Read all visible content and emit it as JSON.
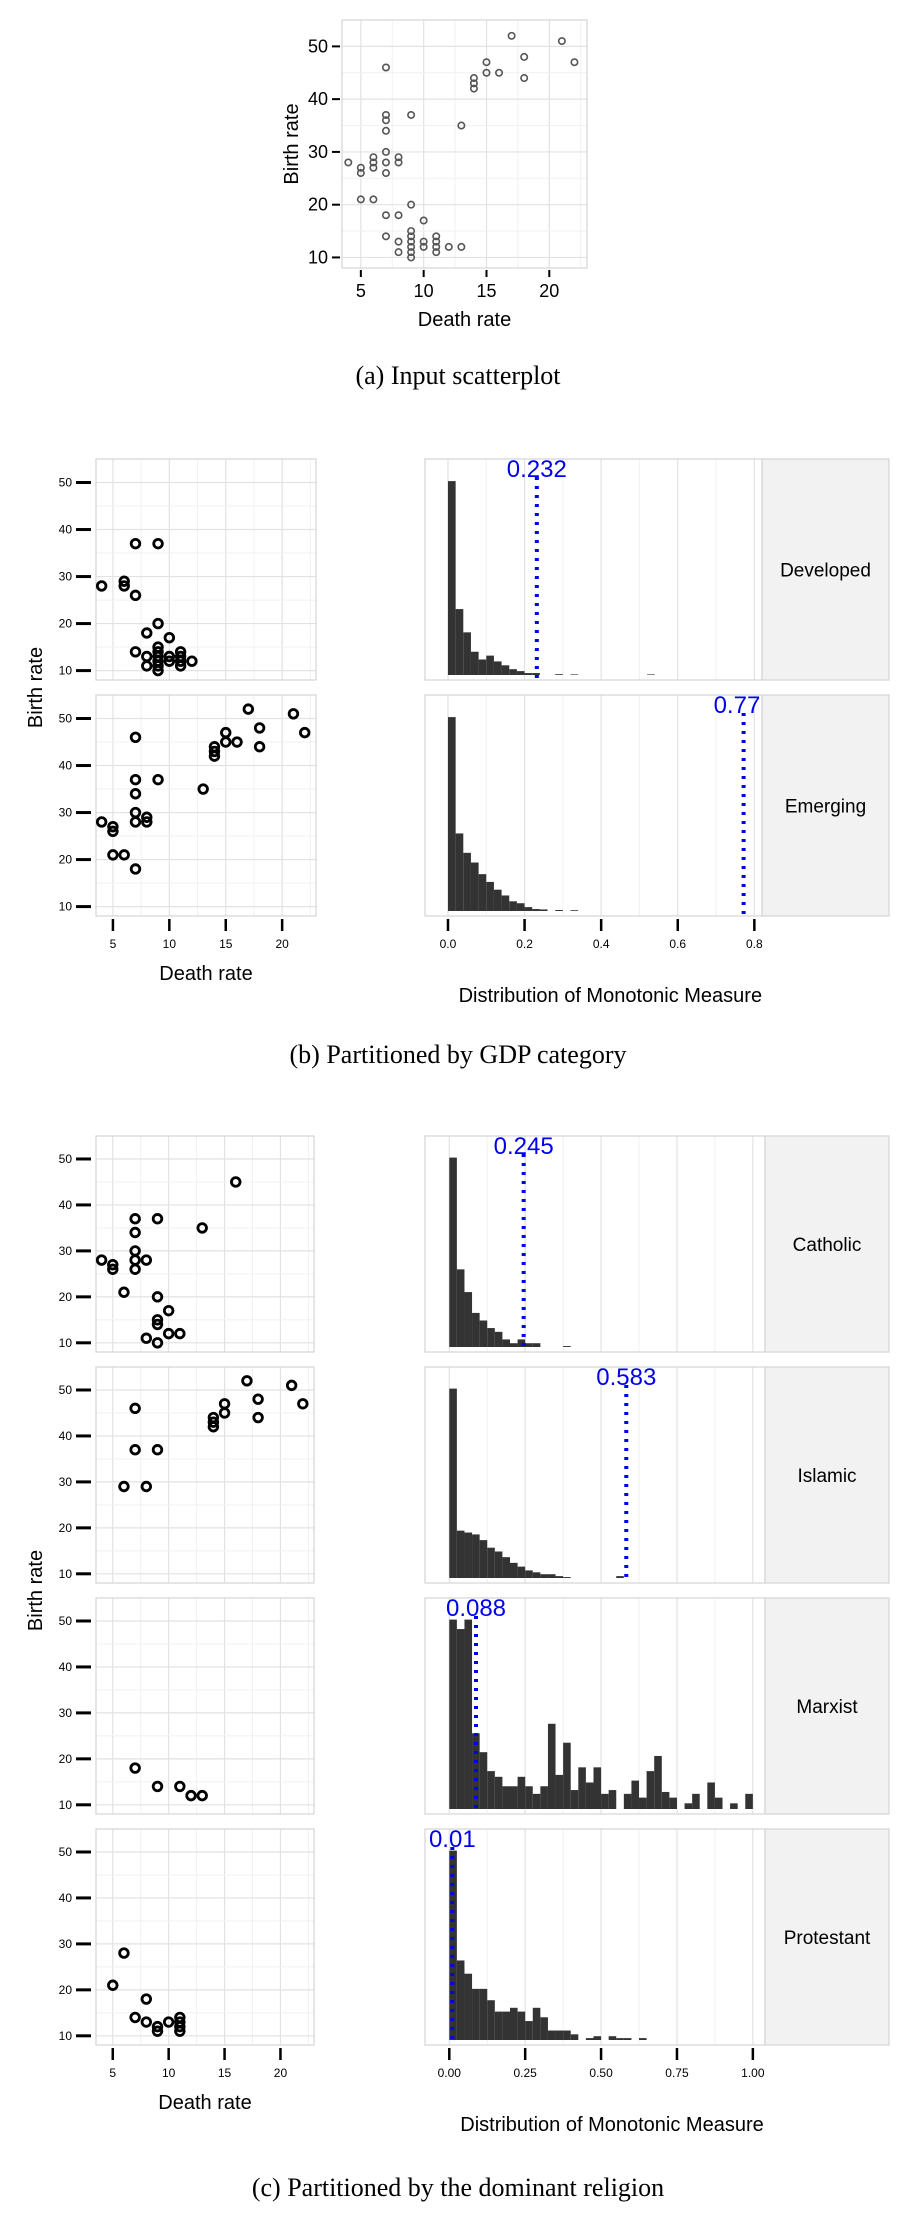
{
  "chart_data": [
    {
      "type": "scatter",
      "caption": "(a) Input scatterplot",
      "xlabel": "Death rate",
      "ylabel": "Birth rate",
      "xlim": [
        3.5,
        23
      ],
      "ylim": [
        8,
        55
      ],
      "xticks": [
        "5",
        "10",
        "15",
        "20"
      ],
      "yticks": [
        "10",
        "20",
        "30",
        "40",
        "50"
      ],
      "points": [
        [
          4,
          28
        ],
        [
          5,
          27
        ],
        [
          5,
          26
        ],
        [
          5,
          21
        ],
        [
          6,
          29
        ],
        [
          6,
          28
        ],
        [
          6,
          27
        ],
        [
          6,
          21
        ],
        [
          7,
          46
        ],
        [
          7,
          37
        ],
        [
          7,
          36
        ],
        [
          7,
          34
        ],
        [
          7,
          30
        ],
        [
          7,
          28
        ],
        [
          7,
          26
        ],
        [
          7,
          18
        ],
        [
          7,
          14
        ],
        [
          8,
          29
        ],
        [
          8,
          28
        ],
        [
          8,
          18
        ],
        [
          8,
          13
        ],
        [
          8,
          11
        ],
        [
          9,
          37
        ],
        [
          9,
          20
        ],
        [
          9,
          15
        ],
        [
          9,
          14
        ],
        [
          9,
          13
        ],
        [
          9,
          12
        ],
        [
          9,
          11
        ],
        [
          9,
          10
        ],
        [
          10,
          17
        ],
        [
          10,
          13
        ],
        [
          10,
          12
        ],
        [
          11,
          14
        ],
        [
          11,
          13
        ],
        [
          11,
          12
        ],
        [
          11,
          11
        ],
        [
          12,
          12
        ],
        [
          13,
          35
        ],
        [
          13,
          12
        ],
        [
          14,
          44
        ],
        [
          14,
          43
        ],
        [
          14,
          42
        ],
        [
          15,
          47
        ],
        [
          15,
          45
        ],
        [
          16,
          45
        ],
        [
          17,
          52
        ],
        [
          18,
          48
        ],
        [
          18,
          44
        ],
        [
          21,
          51
        ],
        [
          22,
          47
        ]
      ]
    },
    {
      "type": "scatter",
      "caption": "(b) Partitioned by GDP category",
      "xlabel": "Death rate",
      "ylabel": "Birth rate",
      "hist_xlabel": "Distribution of Monotonic Measure",
      "xticks": [
        "5",
        "10",
        "15",
        "20"
      ],
      "yticks": [
        "10",
        "20",
        "30",
        "40",
        "50"
      ],
      "hist_xticks": [
        "0.0",
        "0.2",
        "0.4",
        "0.6",
        "0.8"
      ],
      "xlim": [
        3.5,
        23
      ],
      "ylim": [
        8,
        55
      ],
      "hist_xlim": [
        -0.06,
        0.82
      ],
      "panels": [
        {
          "label": "Developed",
          "threshold": 0.232,
          "threshold_label": "0.232",
          "points": [
            [
              4,
              28
            ],
            [
              6,
              29
            ],
            [
              6,
              28
            ],
            [
              7,
              37
            ],
            [
              7,
              26
            ],
            [
              8,
              18
            ],
            [
              7,
              14
            ],
            [
              8,
              13
            ],
            [
              8,
              11
            ],
            [
              9,
              37
            ],
            [
              9,
              20
            ],
            [
              9,
              15
            ],
            [
              9,
              14
            ],
            [
              9,
              13
            ],
            [
              9,
              12
            ],
            [
              9,
              11
            ],
            [
              9,
              10
            ],
            [
              10,
              17
            ],
            [
              10,
              13
            ],
            [
              10,
              12
            ],
            [
              11,
              14
            ],
            [
              11,
              13
            ],
            [
              11,
              12
            ],
            [
              11,
              11
            ],
            [
              12,
              12
            ]
          ],
          "hist": {
            "start": 0.0,
            "width": 0.02,
            "counts": [
              100,
              34,
              22,
              12,
              8,
              10,
              7,
              5,
              3,
              2,
              1,
              1,
              0,
              0,
              0.4,
              0,
              0.3,
              0,
              0,
              0,
              0,
              0,
              0,
              0,
              0,
              0,
              0.3
            ]
          }
        },
        {
          "label": "Emerging",
          "threshold": 0.772,
          "threshold_label": "0.772",
          "points": [
            [
              4,
              28
            ],
            [
              5,
              27
            ],
            [
              5,
              26
            ],
            [
              5,
              21
            ],
            [
              6,
              21
            ],
            [
              7,
              46
            ],
            [
              7,
              37
            ],
            [
              7,
              34
            ],
            [
              7,
              30
            ],
            [
              7,
              28
            ],
            [
              7,
              18
            ],
            [
              8,
              29
            ],
            [
              8,
              28
            ],
            [
              9,
              37
            ],
            [
              13,
              35
            ],
            [
              14,
              44
            ],
            [
              14,
              43
            ],
            [
              14,
              42
            ],
            [
              15,
              47
            ],
            [
              15,
              45
            ],
            [
              16,
              45
            ],
            [
              17,
              52
            ],
            [
              18,
              48
            ],
            [
              18,
              44
            ],
            [
              21,
              51
            ],
            [
              22,
              47
            ]
          ],
          "hist": {
            "start": 0.0,
            "width": 0.02,
            "counts": [
              100,
              40,
              30,
              25,
              19,
              15,
              11,
              8,
              5,
              4,
              2,
              1,
              0.8,
              0,
              0.5,
              0,
              0.4,
              0,
              0,
              0,
              0,
              0,
              0,
              0,
              0,
              0,
              0,
              0,
              0,
              0,
              0,
              0,
              0,
              0,
              0,
              0,
              0,
              0,
              0
            ]
          }
        }
      ]
    },
    {
      "type": "scatter",
      "caption": "(c) Partitioned by the dominant religion",
      "xlabel": "Death rate",
      "ylabel": "Birth rate",
      "hist_xlabel": "Distribution of Monotonic Measure",
      "xticks": [
        "5",
        "10",
        "15",
        "20"
      ],
      "yticks": [
        "10",
        "20",
        "30",
        "40",
        "50"
      ],
      "hist_xticks": [
        "0.00",
        "0.25",
        "0.50",
        "0.75",
        "1.00"
      ],
      "xlim": [
        3.5,
        23
      ],
      "ylim": [
        8,
        55
      ],
      "hist_xlim": [
        -0.08,
        1.04
      ],
      "panels": [
        {
          "label": "Catholic",
          "threshold": 0.245,
          "threshold_label": "0.245",
          "points": [
            [
              4,
              28
            ],
            [
              5,
              27
            ],
            [
              5,
              26
            ],
            [
              6,
              21
            ],
            [
              7,
              37
            ],
            [
              7,
              34
            ],
            [
              7,
              30
            ],
            [
              7,
              28
            ],
            [
              7,
              26
            ],
            [
              8,
              28
            ],
            [
              8,
              11
            ],
            [
              9,
              37
            ],
            [
              9,
              20
            ],
            [
              9,
              15
            ],
            [
              9,
              14
            ],
            [
              9,
              10
            ],
            [
              10,
              17
            ],
            [
              10,
              12
            ],
            [
              11,
              12
            ],
            [
              13,
              35
            ],
            [
              16,
              45
            ]
          ],
          "hist": {
            "start": 0.0,
            "width": 0.025,
            "counts": [
              100,
              41,
              29,
              18,
              14,
              10,
              8,
              4,
              2,
              4,
              2,
              2,
              0,
              0,
              0,
              0.5,
              0,
              0,
              0,
              0,
              0,
              0,
              0,
              0,
              0,
              0,
              0,
              0,
              0,
              0,
              0,
              0,
              0,
              0,
              0,
              0,
              0,
              0,
              0,
              0,
              0
            ]
          }
        },
        {
          "label": "Islamic",
          "threshold": 0.583,
          "threshold_label": "0.583",
          "points": [
            [
              6,
              29
            ],
            [
              7,
              46
            ],
            [
              7,
              37
            ],
            [
              8,
              29
            ],
            [
              9,
              37
            ],
            [
              14,
              44
            ],
            [
              14,
              43
            ],
            [
              14,
              42
            ],
            [
              15,
              47
            ],
            [
              15,
              45
            ],
            [
              17,
              52
            ],
            [
              18,
              48
            ],
            [
              18,
              44
            ],
            [
              21,
              51
            ],
            [
              22,
              47
            ]
          ],
          "hist": {
            "start": 0.0,
            "width": 0.025,
            "counts": [
              100,
              25,
              24,
              23,
              20,
              16,
              14,
              11,
              8,
              6,
              4,
              3,
              2,
              2,
              1,
              0.5,
              0,
              0,
              0,
              0,
              0,
              0,
              1,
              0,
              0,
              0,
              0,
              0,
              0,
              0,
              0,
              0,
              0,
              0,
              0,
              0,
              0,
              0,
              0,
              0
            ]
          }
        },
        {
          "label": "Marxist",
          "threshold": 0.088,
          "threshold_label": "0.088",
          "points": [
            [
              7,
              18
            ],
            [
              9,
              14
            ],
            [
              11,
              14
            ],
            [
              12,
              12
            ],
            [
              13,
              12
            ]
          ],
          "hist": {
            "start": 0.0,
            "width": 0.025,
            "counts": [
              100,
              95,
              100,
              40,
              30,
              20,
              17,
              12,
              12,
              17,
              12,
              8,
              12,
              45,
              18,
              35,
              10,
              22,
              14,
              22,
              8,
              10,
              0,
              8,
              15,
              6,
              20,
              28,
              9,
              6,
              0,
              3,
              8,
              0,
              14,
              6,
              0,
              3,
              0,
              8
            ]
          }
        },
        {
          "label": "Protestant",
          "threshold": 0.01,
          "threshold_label": "0.01",
          "points": [
            [
              6,
              28
            ],
            [
              5,
              21
            ],
            [
              7,
              14
            ],
            [
              8,
              18
            ],
            [
              8,
              13
            ],
            [
              9,
              12
            ],
            [
              9,
              11
            ],
            [
              10,
              13
            ],
            [
              11,
              14
            ],
            [
              11,
              13
            ],
            [
              11,
              12
            ],
            [
              11,
              11
            ]
          ],
          "hist": {
            "start": 0.0,
            "width": 0.025,
            "counts": [
              100,
              42,
              35,
              27,
              27,
              21,
              15,
              15,
              17,
              15,
              10,
              17,
              12,
              5,
              5,
              5,
              3,
              0,
              1,
              2,
              0,
              2,
              1,
              1,
              0,
              1,
              0,
              0,
              0,
              0,
              0,
              0,
              0,
              0,
              0,
              0,
              0,
              0,
              0,
              0
            ]
          }
        }
      ]
    }
  ]
}
